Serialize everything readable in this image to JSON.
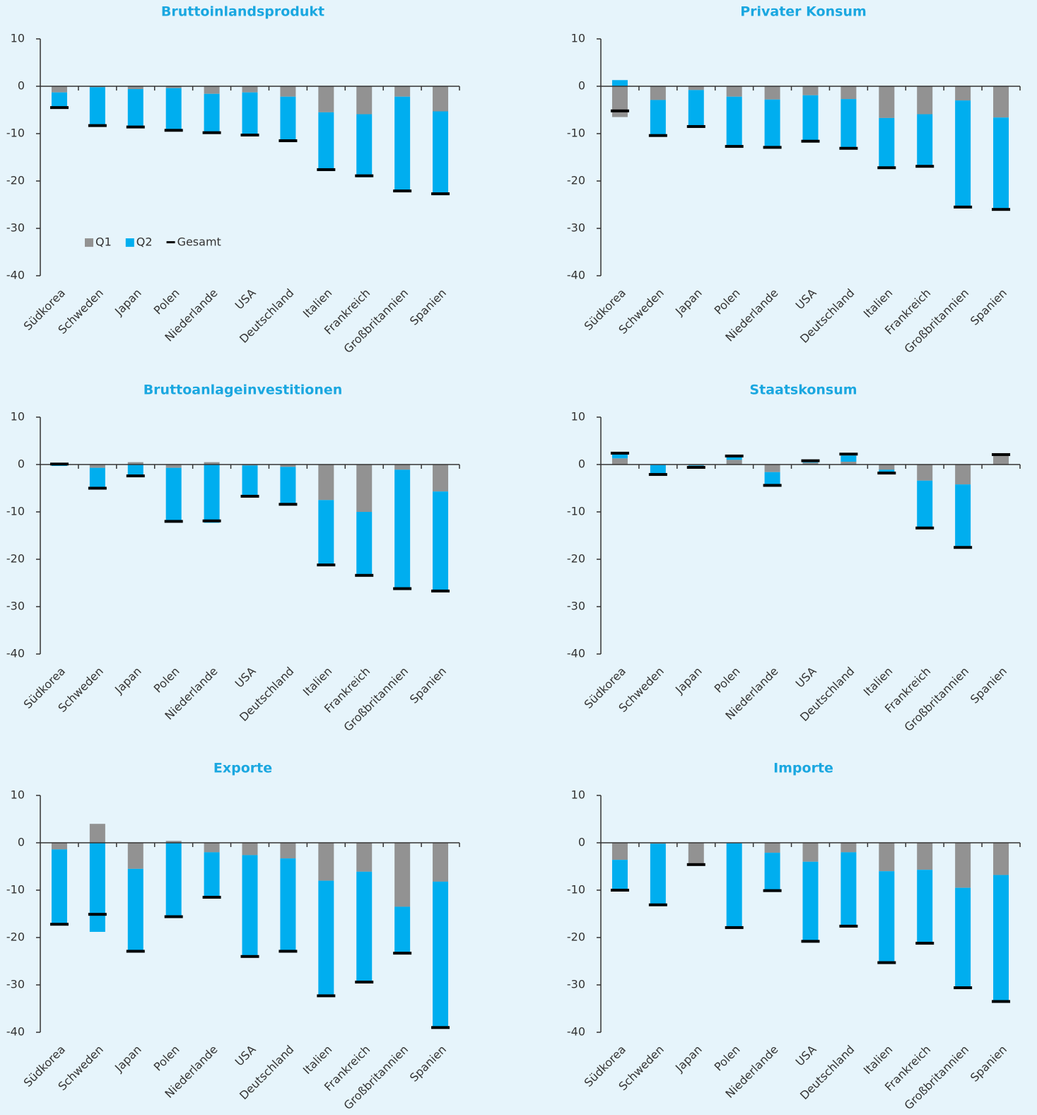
{
  "chart_data": [
    {
      "type": "bar",
      "stacked": true,
      "title": "Bruttoinlandsprodukt",
      "legend": "lower left",
      "categories": [
        "Südkorea",
        "Schweden",
        "Japan",
        "Polen",
        "Niederlande",
        "USA",
        "Deutschland",
        "Italien",
        "Frankreich",
        "Großbritannien",
        "Spanien"
      ],
      "ylim": [
        -40,
        10
      ],
      "yticks": [
        -40,
        -30,
        -20,
        -10,
        0,
        10
      ],
      "series": [
        {
          "name": "Q1",
          "type": "bar",
          "color": "#929292",
          "values": [
            -1.3,
            -0.2,
            -0.6,
            -0.4,
            -1.6,
            -1.3,
            -2.2,
            -5.5,
            -5.9,
            -2.2,
            -5.3
          ]
        },
        {
          "name": "Q2",
          "type": "bar",
          "color": "#00aeef",
          "values": [
            -3.2,
            -8.1,
            -8.2,
            -9.0,
            -8.2,
            -9.0,
            -9.5,
            -12.4,
            -13.3,
            -20.0,
            -17.7
          ]
        },
        {
          "name": "Gesamt",
          "type": "marker",
          "color": "#000000",
          "values": [
            -4.5,
            -8.3,
            -8.6,
            -9.3,
            -9.8,
            -10.3,
            -11.5,
            -17.6,
            -18.9,
            -22.1,
            -22.7
          ]
        }
      ]
    },
    {
      "type": "bar",
      "stacked": true,
      "title": "Privater Konsum",
      "categories": [
        "Südkorea",
        "Schweden",
        "Japan",
        "Polen",
        "Niederlande",
        "USA",
        "Deutschland",
        "Italien",
        "Frankreich",
        "Großbritannien",
        "Spanien"
      ],
      "ylim": [
        -40,
        10
      ],
      "yticks": [
        -40,
        -30,
        -20,
        -10,
        0,
        10
      ],
      "series": [
        {
          "name": "Q1",
          "type": "bar",
          "color": "#929292",
          "values": [
            -6.5,
            -2.9,
            -0.8,
            -2.2,
            -2.8,
            -1.9,
            -2.7,
            -6.7,
            -5.9,
            -3.0,
            -6.6
          ]
        },
        {
          "name": "Q2",
          "type": "bar",
          "color": "#00aeef",
          "values": [
            1.3,
            -7.5,
            -7.7,
            -10.6,
            -10.2,
            -9.6,
            -10.4,
            -10.6,
            -11.1,
            -22.3,
            -19.3
          ]
        },
        {
          "name": "Gesamt",
          "type": "marker",
          "color": "#000000",
          "values": [
            -5.2,
            -10.4,
            -8.5,
            -12.7,
            -12.9,
            -11.6,
            -13.1,
            -17.2,
            -16.9,
            -25.5,
            -26.0
          ]
        }
      ]
    },
    {
      "type": "bar",
      "stacked": true,
      "title": "Bruttoanlageinvestitionen",
      "categories": [
        "Südkorea",
        "Schweden",
        "Japan",
        "Polen",
        "Niederlande",
        "USA",
        "Deutschland",
        "Italien",
        "Frankreich",
        "Großbritannien",
        "Spanien"
      ],
      "ylim": [
        -40,
        10
      ],
      "yticks": [
        -40,
        -30,
        -20,
        -10,
        0,
        10
      ],
      "series": [
        {
          "name": "Q1",
          "type": "bar",
          "color": "#929292",
          "values": [
            0.2,
            -0.7,
            0.5,
            -0.7,
            0.5,
            -0.2,
            -0.5,
            -7.5,
            -10.0,
            -1.1,
            -5.7
          ]
        },
        {
          "name": "Q2",
          "type": "bar",
          "color": "#00aeef",
          "values": [
            -0.3,
            -4.0,
            -2.2,
            -11.2,
            -12.3,
            -6.6,
            -7.8,
            -13.7,
            -13.5,
            -25.0,
            -21.0
          ]
        },
        {
          "name": "Gesamt",
          "type": "marker",
          "color": "#000000",
          "values": [
            0.1,
            -5.0,
            -2.4,
            -12.0,
            -11.9,
            -6.7,
            -8.4,
            -21.2,
            -23.4,
            -26.2,
            -26.7
          ]
        }
      ]
    },
    {
      "type": "bar",
      "stacked": true,
      "title": "Staatskonsum",
      "categories": [
        "Südkorea",
        "Schweden",
        "Japan",
        "Polen",
        "Niederlande",
        "USA",
        "Deutschland",
        "Italien",
        "Frankreich",
        "Großbritannien",
        "Spanien"
      ],
      "ylim": [
        -40,
        10
      ],
      "yticks": [
        -40,
        -30,
        -20,
        -10,
        0,
        10
      ],
      "series": [
        {
          "name": "Q1",
          "type": "bar",
          "color": "#929292",
          "values": [
            1.3,
            -0.1,
            -0.2,
            1.0,
            -1.6,
            0.4,
            0.6,
            -1.1,
            -3.4,
            -4.2,
            2.0
          ]
        },
        {
          "name": "Q2",
          "type": "bar",
          "color": "#00aeef",
          "values": [
            1.0,
            -1.9,
            -0.4,
            0.6,
            -2.6,
            0.3,
            1.3,
            -0.6,
            -9.9,
            -13.2,
            0.1
          ]
        },
        {
          "name": "Gesamt",
          "type": "marker",
          "color": "#000000",
          "values": [
            2.4,
            -2.1,
            -0.6,
            1.8,
            -4.4,
            0.8,
            2.2,
            -1.8,
            -13.4,
            -17.5,
            2.1
          ]
        }
      ]
    },
    {
      "type": "bar",
      "stacked": true,
      "title": "Exporte",
      "categories": [
        "Südkorea",
        "Schweden",
        "Japan",
        "Polen",
        "Niederlande",
        "USA",
        "Deutschland",
        "Italien",
        "Frankreich",
        "Großbritannien",
        "Spanien"
      ],
      "ylim": [
        -40,
        10
      ],
      "yticks": [
        -40,
        -30,
        -20,
        -10,
        0,
        10
      ],
      "series": [
        {
          "name": "Q1",
          "type": "bar",
          "color": "#929292",
          "values": [
            -1.4,
            4.0,
            -5.5,
            0.4,
            -2.0,
            -2.6,
            -3.3,
            -8.0,
            -6.1,
            -13.5,
            -8.2
          ]
        },
        {
          "name": "Q2",
          "type": "bar",
          "color": "#00aeef",
          "values": [
            -15.6,
            -18.8,
            -17.3,
            -15.6,
            -9.5,
            -21.3,
            -19.6,
            -24.3,
            -23.3,
            -9.8,
            -30.8
          ]
        },
        {
          "name": "Gesamt",
          "type": "marker",
          "color": "#000000",
          "values": [
            -17.2,
            -15.1,
            -22.9,
            -15.6,
            -11.5,
            -24.0,
            -22.9,
            -32.3,
            -29.4,
            -23.3,
            -39.0
          ]
        }
      ]
    },
    {
      "type": "bar",
      "stacked": true,
      "title": "Importe",
      "categories": [
        "Südkorea",
        "Schweden",
        "Japan",
        "Polen",
        "Niederlande",
        "USA",
        "Deutschland",
        "Italien",
        "Frankreich",
        "Großbritannien",
        "Spanien"
      ],
      "ylim": [
        -40,
        10
      ],
      "yticks": [
        -40,
        -30,
        -20,
        -10,
        0,
        10
      ],
      "series": [
        {
          "name": "Q1",
          "type": "bar",
          "color": "#929292",
          "values": [
            -3.6,
            -0.2,
            -4.5,
            -0.1,
            -2.1,
            -4.0,
            -2.0,
            -6.0,
            -5.7,
            -9.5,
            -6.8
          ]
        },
        {
          "name": "Q2",
          "type": "bar",
          "color": "#00aeef",
          "values": [
            -6.5,
            -13.0,
            -0.1,
            -17.8,
            -8.0,
            -16.8,
            -15.7,
            -19.2,
            -15.6,
            -21.1,
            -26.6
          ]
        },
        {
          "name": "Gesamt",
          "type": "marker",
          "color": "#000000",
          "values": [
            -10.0,
            -13.1,
            -4.6,
            -17.9,
            -10.1,
            -20.8,
            -17.6,
            -25.3,
            -21.2,
            -30.6,
            -33.5
          ]
        }
      ]
    }
  ]
}
